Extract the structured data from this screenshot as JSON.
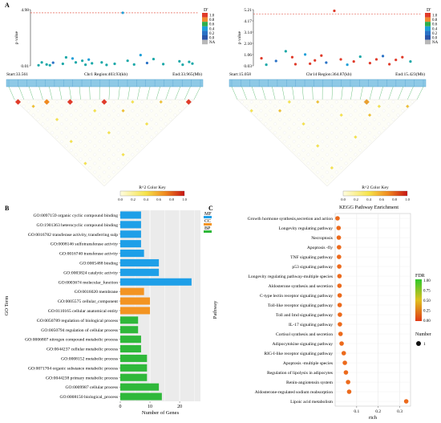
{
  "panel_a": {
    "letter": "A",
    "left": {
      "y_ticks": [
        "4.98",
        "0.01"
      ],
      "y_label": "p value",
      "d_legend_title": "D'",
      "d_legend": [
        {
          "label": "1.0",
          "color": "#e03b2a"
        },
        {
          "label": "0.8",
          "color": "#f08a32"
        },
        {
          "label": "0.6",
          "color": "#2eae4b"
        },
        {
          "label": "0.4",
          "color": "#1e9fd8"
        },
        {
          "label": "0.2",
          "color": "#2a72c6"
        },
        {
          "label": "0.0",
          "color": "#2b55a8"
        },
        {
          "label": "NA",
          "color": "#b8b8b8"
        }
      ],
      "threshold": 4.7,
      "ymax": 4.98,
      "points": [
        {
          "x": 0.03,
          "y": 0.05,
          "c": "#1aa8a8"
        },
        {
          "x": 0.05,
          "y": 0.3,
          "c": "#1aa8a8"
        },
        {
          "x": 0.08,
          "y": 0.12,
          "c": "#1aa8a8"
        },
        {
          "x": 0.1,
          "y": 0.05,
          "c": "#1aa8a8"
        },
        {
          "x": 0.12,
          "y": 0.28,
          "c": "#2a72c6"
        },
        {
          "x": 0.18,
          "y": 0.18,
          "c": "#1aa8a8"
        },
        {
          "x": 0.2,
          "y": 0.75,
          "c": "#1aa8a8"
        },
        {
          "x": 0.24,
          "y": 0.65,
          "c": "#1e9fd8"
        },
        {
          "x": 0.26,
          "y": 0.3,
          "c": "#1aa8a8"
        },
        {
          "x": 0.3,
          "y": 0.45,
          "c": "#1aa8a8"
        },
        {
          "x": 0.32,
          "y": 0.1,
          "c": "#1aa8a8"
        },
        {
          "x": 0.34,
          "y": 0.55,
          "c": "#1e9fd8"
        },
        {
          "x": 0.36,
          "y": 0.22,
          "c": "#1aa8a8"
        },
        {
          "x": 0.42,
          "y": 0.3,
          "c": "#1aa8a8"
        },
        {
          "x": 0.45,
          "y": 0.08,
          "c": "#1aa8a8"
        },
        {
          "x": 0.5,
          "y": 0.18,
          "c": "#1aa8a8"
        },
        {
          "x": 0.55,
          "y": 4.7,
          "c": "#1e9fd8"
        },
        {
          "x": 0.58,
          "y": 0.45,
          "c": "#1aa8a8"
        },
        {
          "x": 0.62,
          "y": 0.12,
          "c": "#1aa8a8"
        },
        {
          "x": 0.66,
          "y": 0.95,
          "c": "#1e9fd8"
        },
        {
          "x": 0.7,
          "y": 0.25,
          "c": "#2a72c6"
        },
        {
          "x": 0.74,
          "y": 0.6,
          "c": "#1aa8a8"
        },
        {
          "x": 0.8,
          "y": 0.15,
          "c": "#1aa8a8"
        },
        {
          "x": 0.9,
          "y": 0.4,
          "c": "#1aa8a8"
        },
        {
          "x": 0.92,
          "y": 0.1,
          "c": "#1aa8a8"
        },
        {
          "x": 0.96,
          "y": 0.35,
          "c": "#1aa8a8"
        },
        {
          "x": 0.98,
          "y": 0.2,
          "c": "#1aa8a8"
        }
      ],
      "start_label": "Start:33.561",
      "region_label": "Chr1 Region:403.93(kb)",
      "end_label": "End:33.965(Mb)",
      "color_key_label": "R^2 Color Key",
      "color_key_ticks": [
        "0.0",
        "0.2",
        "0.4",
        "0.6",
        "0.8",
        "1.0"
      ]
    },
    "right": {
      "y_ticks": [
        "5.21",
        "4.17",
        "3.14",
        "2.10",
        "1.06",
        "0.03"
      ],
      "y_label": "p value",
      "d_legend_title": "D'",
      "threshold": 4.8,
      "ymax": 5.21,
      "points": [
        {
          "x": 0.03,
          "y": 0.7,
          "c": "#e03b2a"
        },
        {
          "x": 0.06,
          "y": 0.1,
          "c": "#1aa8a8"
        },
        {
          "x": 0.12,
          "y": 0.45,
          "c": "#2a72c6"
        },
        {
          "x": 0.18,
          "y": 1.35,
          "c": "#1aa8a8"
        },
        {
          "x": 0.22,
          "y": 0.8,
          "c": "#e03b2a"
        },
        {
          "x": 0.24,
          "y": 0.15,
          "c": "#e03b2a"
        },
        {
          "x": 0.3,
          "y": 1.05,
          "c": "#1e9fd8"
        },
        {
          "x": 0.33,
          "y": 0.2,
          "c": "#e03b2a"
        },
        {
          "x": 0.36,
          "y": 0.5,
          "c": "#e03b2a"
        },
        {
          "x": 0.4,
          "y": 0.95,
          "c": "#e03b2a"
        },
        {
          "x": 0.43,
          "y": 0.3,
          "c": "#2a72c6"
        },
        {
          "x": 0.48,
          "y": 5.1,
          "c": "#e03b2a"
        },
        {
          "x": 0.52,
          "y": 0.6,
          "c": "#e03b2a"
        },
        {
          "x": 0.56,
          "y": 0.1,
          "c": "#1e9fd8"
        },
        {
          "x": 0.6,
          "y": 0.4,
          "c": "#e03b2a"
        },
        {
          "x": 0.64,
          "y": 0.85,
          "c": "#1aa8a8"
        },
        {
          "x": 0.7,
          "y": 0.25,
          "c": "#e03b2a"
        },
        {
          "x": 0.74,
          "y": 0.6,
          "c": "#e03b2a"
        },
        {
          "x": 0.78,
          "y": 0.9,
          "c": "#2a72c6"
        },
        {
          "x": 0.82,
          "y": 0.15,
          "c": "#e03b2a"
        },
        {
          "x": 0.86,
          "y": 0.55,
          "c": "#e03b2a"
        },
        {
          "x": 0.9,
          "y": 0.8,
          "c": "#e03b2a"
        },
        {
          "x": 0.95,
          "y": 0.4,
          "c": "#1aa8a8"
        }
      ],
      "start_label": "Start:15.058",
      "region_label": "Chr14 Region:364.87(kb)",
      "end_label": "End:15.423(Mb)",
      "color_key_label": "R^2 Color Key",
      "color_key_ticks": [
        "0.0",
        "0.2",
        "0.4",
        "0.6",
        "0.8",
        "1.0"
      ]
    }
  },
  "chart_data": [
    {
      "type": "bar",
      "panel": "B",
      "ylabel": "GO Term",
      "xlabel": "Number of Genes",
      "xlim": [
        0,
        27
      ],
      "x_ticks": [
        0,
        10,
        20
      ],
      "legend": [
        {
          "label": "MF",
          "color": "#1e9fe8"
        },
        {
          "label": "CC",
          "color": "#f39422"
        },
        {
          "label": "BP",
          "color": "#2fb83a"
        }
      ],
      "categories": [
        "GO:0097159 organic cyclic compound binding",
        "GO:1901363 heterocyclic compound binding",
        "GO:0016782 transferase activity, transferring sulp",
        "GO:0008146 sulfotransferase activity",
        "GO:0016740 transferase activity",
        "GO:0005488 binding",
        "GO:0003824 catalytic activity",
        "GO:0003674 molecular_function",
        "GO:0016020 membrane",
        "GO:0005575 cellular_component",
        "GO:0110165 cellular anatomical entity",
        "GO:0050789 regulation of biological process",
        "GO:0050794 regulation of cellular process",
        "GO:0006807 nitrogen compound metabolic process",
        "GO:0044237 cellular metabolic process",
        "GO:0008152 metabolic process",
        "GO:0071704 organic substance metabolic process",
        "GO:0044238 primary metabolic process",
        "GO:0009987 cellular process",
        "GO:0008150 biological_process"
      ],
      "values": [
        7,
        7,
        7,
        7,
        8,
        13,
        13,
        24,
        8,
        10,
        10,
        6,
        6,
        7,
        7,
        9,
        9,
        9,
        13,
        14
      ],
      "groups": [
        "MF",
        "MF",
        "MF",
        "MF",
        "MF",
        "MF",
        "MF",
        "MF",
        "CC",
        "CC",
        "CC",
        "BP",
        "BP",
        "BP",
        "BP",
        "BP",
        "BP",
        "BP",
        "BP",
        "BP"
      ]
    },
    {
      "type": "scatter",
      "panel": "C",
      "title": "KEGG Pathway Enrichment",
      "xlabel": "rich",
      "ylabel": "Pathway",
      "xlim": [
        0,
        0.35
      ],
      "x_ticks": [
        0.1,
        0.2,
        0.3
      ],
      "x_tick_labels": [
        "0.1",
        "0.2",
        "0.3"
      ],
      "fdr_title": "FDR",
      "fdr_ticks": [
        "1.00",
        "0.75",
        "0.50",
        "0.25",
        "0.00"
      ],
      "number_title": "Number",
      "number_value": "1",
      "categories": [
        "Growth hormone synthesis,secretion and action",
        "Longevity regulating pathway",
        "Necroptosis",
        "Apoptosis -fly",
        "TNF signaling pathway",
        "p53 signaling pathway",
        "Longevity regulating pathway-multiple species",
        "Aldosterone synthesis and secretion",
        "C-type lectin receptor signaling pathway",
        "Toll-like receptor signaling pathway",
        "Toll and Imd signaling pathway",
        "IL-17 signaling pathway",
        "Cortisol synthesis and secretion",
        "Adipocytokine signaling pathway",
        "RIG-I-like receptor signaling pathway",
        "Apoptosis -multiple species",
        "Regulation of lipolysis in adipocytes",
        "Renin-angiotensin system",
        "Aldosterone-regulated sodium reabsorption",
        "Lipoic acid metabolism"
      ],
      "values": [
        0.011,
        0.016,
        0.017,
        0.018,
        0.018,
        0.019,
        0.02,
        0.02,
        0.021,
        0.021,
        0.022,
        0.022,
        0.025,
        0.03,
        0.04,
        0.045,
        0.05,
        0.06,
        0.065,
        0.33
      ],
      "fdr": [
        0.15,
        0.15,
        0.15,
        0.15,
        0.15,
        0.15,
        0.15,
        0.15,
        0.15,
        0.15,
        0.15,
        0.15,
        0.15,
        0.15,
        0.15,
        0.15,
        0.15,
        0.15,
        0.15,
        0.15
      ]
    }
  ],
  "panel_b_letter": "B",
  "panel_c_letter": "C"
}
